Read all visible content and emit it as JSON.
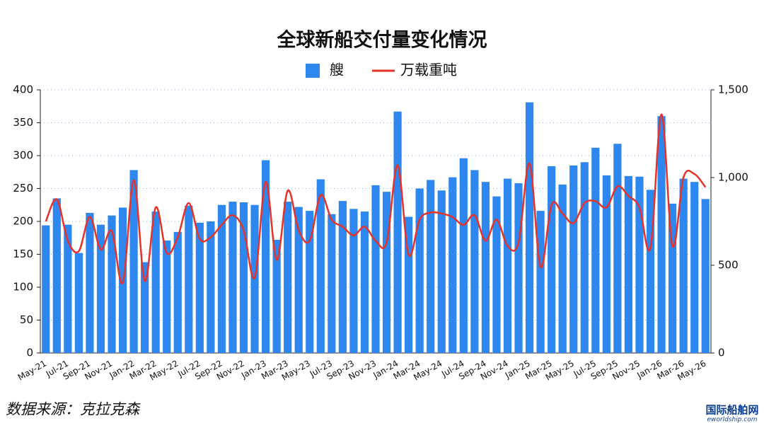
{
  "chart_data": {
    "type": "bar",
    "title": "全球新船交付量变化情况",
    "categories": [
      "May-21",
      null,
      "Jul-21",
      null,
      "Sep-21",
      null,
      "Nov-21",
      null,
      "Jan-22",
      null,
      "Mar-22",
      null,
      "May-22",
      null,
      "Jul-22",
      null,
      "Sep-22",
      null,
      "Nov-22",
      null,
      "Jan-23",
      null,
      "Mar-23",
      null,
      "May-23",
      null,
      "Jul-23",
      null,
      "Sep-23",
      null,
      "Nov-23",
      null,
      "Jan-24",
      null,
      "Mar-24",
      null,
      "May-24",
      null,
      "Jul-24",
      null,
      "Sep-24",
      null,
      "Nov-24",
      null,
      "Jan-25",
      null,
      "Mar-25",
      null,
      "May-25",
      null,
      "Jul-25",
      null,
      "Sep-25",
      null,
      "Nov-25",
      null,
      "Jan-26",
      null,
      "Mar-26",
      null,
      "May-26"
    ],
    "series": [
      {
        "name": "艘",
        "type": "bar",
        "color": "#2e86ef",
        "values": [
          194,
          235,
          195,
          152,
          213,
          195,
          209,
          221,
          278,
          138,
          215,
          171,
          184,
          224,
          198,
          200,
          225,
          230,
          229,
          225,
          293,
          172,
          230,
          222,
          216,
          264,
          211,
          231,
          219,
          215,
          255,
          245,
          367,
          207,
          250,
          263,
          247,
          267,
          296,
          278,
          260,
          238,
          265,
          258,
          381,
          216,
          284,
          256,
          285,
          290,
          312,
          270,
          318,
          269,
          268,
          248,
          360,
          227,
          265,
          260,
          234
        ]
      },
      {
        "name": "万载重吨",
        "type": "line",
        "axis": "y2",
        "color": "#e5332a",
        "values": [
          750,
          875,
          640,
          580,
          775,
          590,
          695,
          400,
          985,
          410,
          830,
          570,
          660,
          855,
          650,
          660,
          730,
          785,
          700,
          430,
          975,
          530,
          925,
          700,
          640,
          900,
          760,
          720,
          670,
          720,
          640,
          630,
          1070,
          560,
          760,
          800,
          795,
          775,
          730,
          785,
          640,
          760,
          610,
          630,
          1080,
          490,
          845,
          795,
          740,
          855,
          865,
          830,
          950,
          895,
          830,
          600,
          1360,
          610,
          1000,
          1020,
          945
        ]
      }
    ],
    "ylim": [
      0,
      400
    ],
    "yticks": [
      0,
      50,
      100,
      150,
      200,
      250,
      300,
      350,
      400
    ],
    "y2lim": [
      0,
      1500
    ],
    "y2ticks": [
      0,
      500,
      {
        "value": 1000,
        "label": "1,000"
      },
      {
        "value": 1500,
        "label": "1,500"
      }
    ],
    "grid": true,
    "legend": "top",
    "source": "数据来源：克拉克森",
    "watermark": "国际船舶网",
    "watermark_sub": "eworldship.com"
  }
}
